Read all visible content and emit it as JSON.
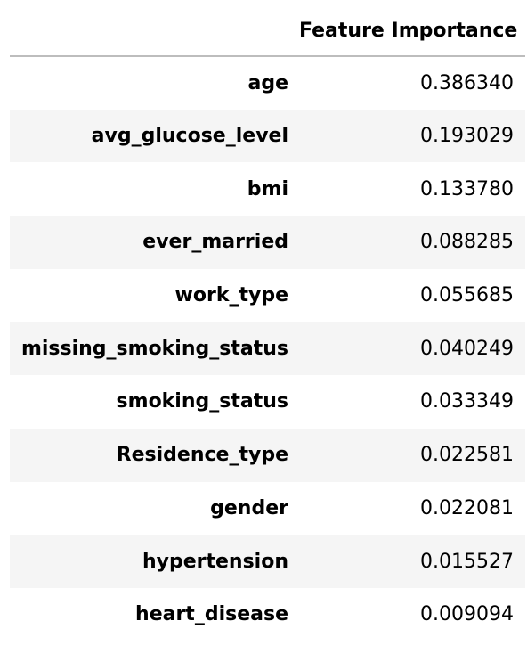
{
  "table": {
    "index_header": "",
    "column_header": "Feature Importance",
    "rows": [
      {
        "feature": "age",
        "importance": "0.386340"
      },
      {
        "feature": "avg_glucose_level",
        "importance": "0.193029"
      },
      {
        "feature": "bmi",
        "importance": "0.133780"
      },
      {
        "feature": "ever_married",
        "importance": "0.088285"
      },
      {
        "feature": "work_type",
        "importance": "0.055685"
      },
      {
        "feature": "missing_smoking_status",
        "importance": "0.040249"
      },
      {
        "feature": "smoking_status",
        "importance": "0.033349"
      },
      {
        "feature": "Residence_type",
        "importance": "0.022581"
      },
      {
        "feature": "gender",
        "importance": "0.022081"
      },
      {
        "feature": "hypertension",
        "importance": "0.015527"
      },
      {
        "feature": "heart_disease",
        "importance": "0.009094"
      }
    ]
  }
}
